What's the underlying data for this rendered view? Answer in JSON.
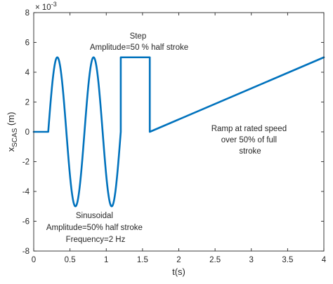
{
  "chart_data": {
    "type": "line",
    "title": "",
    "xlabel": "t(s)",
    "ylabel_main": "x",
    "ylabel_sub": "SCAS",
    "ylabel_unit": " (m)",
    "y_exponent_base": "× 10",
    "y_exponent_power": "-3",
    "xlim": [
      0,
      4
    ],
    "ylim": [
      -8,
      8
    ],
    "y_scale_factor": 0.001,
    "x_ticks": [
      0,
      0.5,
      1,
      1.5,
      2,
      2.5,
      3,
      3.5,
      4
    ],
    "x_tick_labels": [
      "0",
      "0.5",
      "1",
      "1.5",
      "2",
      "2.5",
      "3",
      "3.5",
      "4"
    ],
    "y_ticks": [
      -8,
      -6,
      -4,
      -2,
      0,
      2,
      4,
      6,
      8
    ],
    "y_tick_labels": [
      "-8",
      "-6",
      "-4",
      "-2",
      "0",
      "2",
      "4",
      "6",
      "8"
    ],
    "grid": false,
    "line_color": "#0072bd",
    "series": [
      {
        "segments": [
          {
            "kind": "constant",
            "t0": 0,
            "t1": 0.2,
            "value": 0
          },
          {
            "kind": "sine",
            "t0": 0.2,
            "t1": 1.2,
            "amplitude": 5,
            "frequency": 2
          },
          {
            "kind": "constant",
            "t0": 1.2,
            "t1": 1.6,
            "value": 5
          },
          {
            "kind": "linear",
            "t0": 1.6,
            "t1": 4.0,
            "v0": 0,
            "v1": 5
          }
        ]
      }
    ],
    "annotations": [
      {
        "lines": [
          "Step",
          "Amplitude=50 % half stroke"
        ]
      },
      {
        "lines": [
          "Ramp at rated speed",
          "over 50% of full",
          "stroke"
        ]
      },
      {
        "lines": [
          "Sinusoidal",
          "Amplitude=50% half stroke",
          "Frequency=2 Hz"
        ]
      }
    ]
  }
}
